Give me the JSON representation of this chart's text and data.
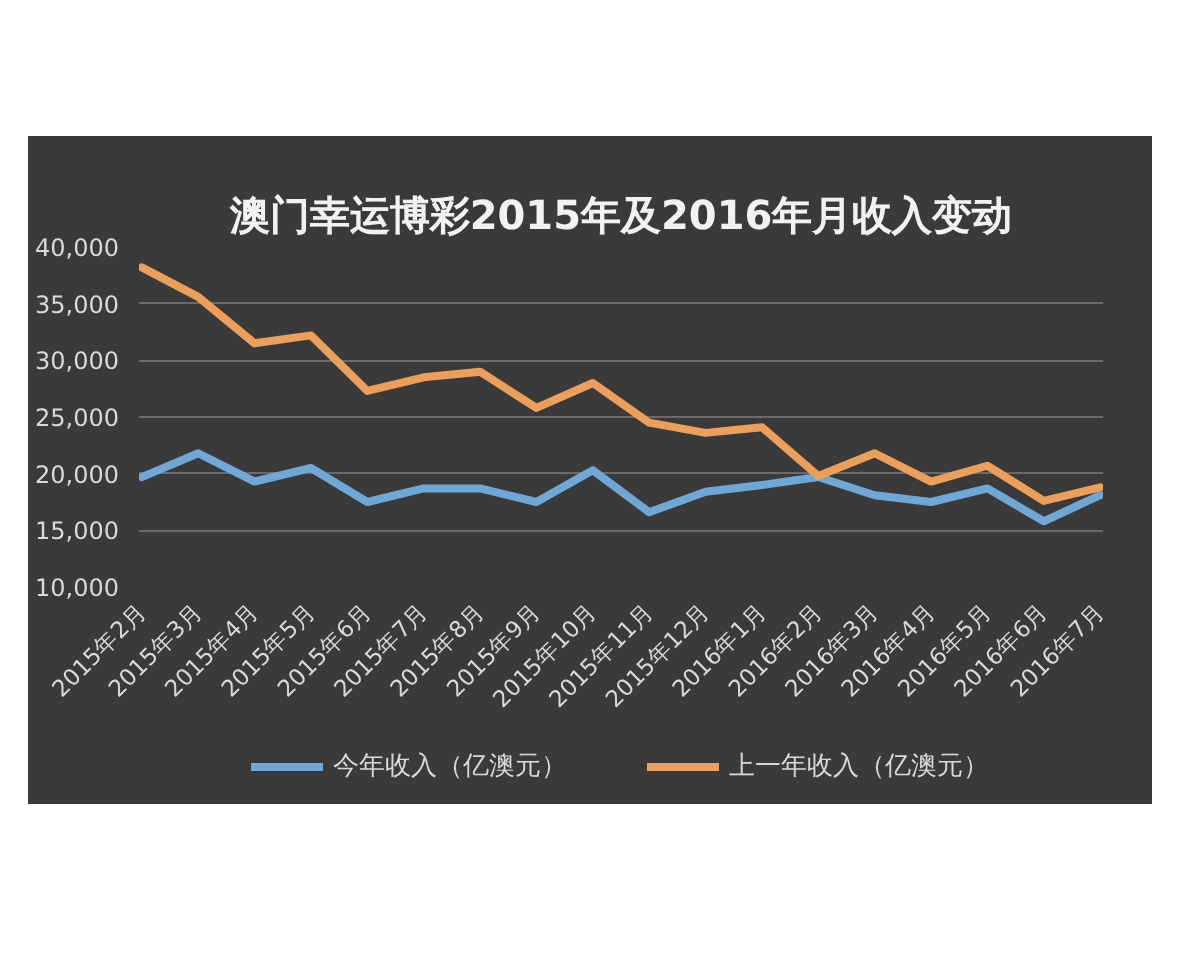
{
  "chart_data": {
    "type": "line",
    "title": "澳门幸运博彩2015年及2016年月收入变动",
    "categories": [
      "2015年2月",
      "2015年3月",
      "2015年4月",
      "2015年5月",
      "2015年6月",
      "2015年7月",
      "2015年8月",
      "2015年9月",
      "2015年10月",
      "2015年11月",
      "2015年12月",
      "2016年1月",
      "2016年2月",
      "2016年3月",
      "2016年4月",
      "2016年5月",
      "2016年6月",
      "2016年7月"
    ],
    "series": [
      {
        "name": "今年收入（亿澳元）",
        "color": "#6fa8d6",
        "values": [
          19700,
          21800,
          19300,
          20500,
          17500,
          18700,
          18700,
          17500,
          20300,
          16600,
          18400,
          19000,
          19700,
          18100,
          17500,
          18700,
          15800,
          18100
        ]
      },
      {
        "name": "上一年收入（亿澳元）",
        "color": "#eb9f5a",
        "values": [
          38200,
          35600,
          31500,
          32200,
          27300,
          28500,
          29000,
          25800,
          28000,
          24500,
          23600,
          24100,
          19800,
          21800,
          19300,
          20700,
          17600,
          18800
        ]
      }
    ],
    "ylim": [
      10000,
      40000
    ],
    "yticks": [
      {
        "value": 10000,
        "label": "10,000"
      },
      {
        "value": 15000,
        "label": "15,000"
      },
      {
        "value": 20000,
        "label": "20,000"
      },
      {
        "value": 25000,
        "label": "25,000"
      },
      {
        "value": 30000,
        "label": "30,000"
      },
      {
        "value": 35000,
        "label": "35,000"
      },
      {
        "value": 40000,
        "label": "40,000"
      }
    ],
    "grid": "y",
    "legend": "bottom",
    "line_style": "solid"
  }
}
